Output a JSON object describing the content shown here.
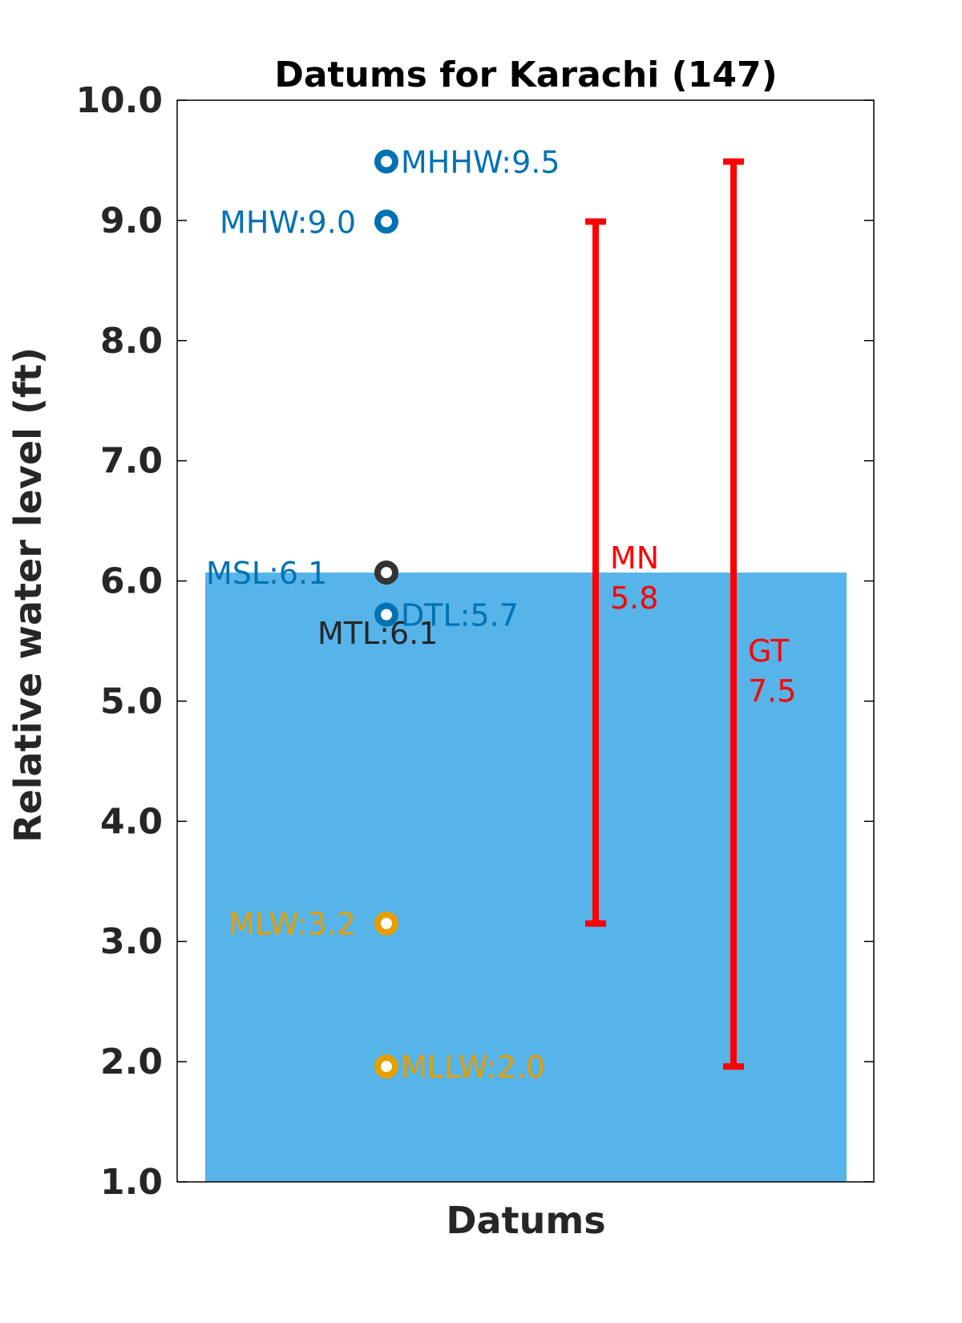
{
  "chart_data": {
    "type": "scatter",
    "title": "Datums for Karachi (147)",
    "xlabel": "Datums",
    "ylabel": "Relative water level (ft)",
    "ylim": [
      1.0,
      10.0
    ],
    "yticks": [
      "1.0",
      "2.0",
      "3.0",
      "4.0",
      "5.0",
      "6.0",
      "7.0",
      "8.0",
      "9.0",
      "10.0"
    ],
    "grid": false,
    "background_bar": {
      "value": 6.07,
      "color": "#56b4e9"
    },
    "datums": [
      {
        "name": "MHHW",
        "value": 9.49,
        "label": "MHHW:9.5",
        "color": "#0072b2",
        "label_color": "#0072b2",
        "label_side": "right"
      },
      {
        "name": "MHW",
        "value": 8.99,
        "label": "MHW:9.0",
        "color": "#0072b2",
        "label_color": "#0072b2",
        "label_side": "left"
      },
      {
        "name": "MSL",
        "value": 6.07,
        "label": "MSL:6.1",
        "color": "#0072b2",
        "label_color": "#0072b2",
        "label_side": "far-left"
      },
      {
        "name": "MTL",
        "value": 6.07,
        "label": "MTL:6.1",
        "color": "#333333",
        "label_color": "#262626",
        "label_side": "below-left"
      },
      {
        "name": "DTL",
        "value": 5.72,
        "label": "DTL:5.7",
        "color": "#0072b2",
        "label_color": "#0072b2",
        "label_side": "right"
      },
      {
        "name": "MLW",
        "value": 3.15,
        "label": "MLW:3.2",
        "color": "#e69f00",
        "label_color": "#e69f00",
        "label_side": "left"
      },
      {
        "name": "MLLW",
        "value": 1.96,
        "label": "MLLW:2.0",
        "color": "#e69f00",
        "label_color": "#e69f00",
        "label_side": "right"
      }
    ],
    "ranges": [
      {
        "name": "MN",
        "low": 3.15,
        "high": 8.99,
        "label": "MN",
        "value_label": "5.8",
        "color": "#ff0000"
      },
      {
        "name": "GT",
        "low": 1.96,
        "high": 9.49,
        "label": "GT",
        "value_label": "7.5",
        "color": "#ff0000"
      }
    ]
  }
}
